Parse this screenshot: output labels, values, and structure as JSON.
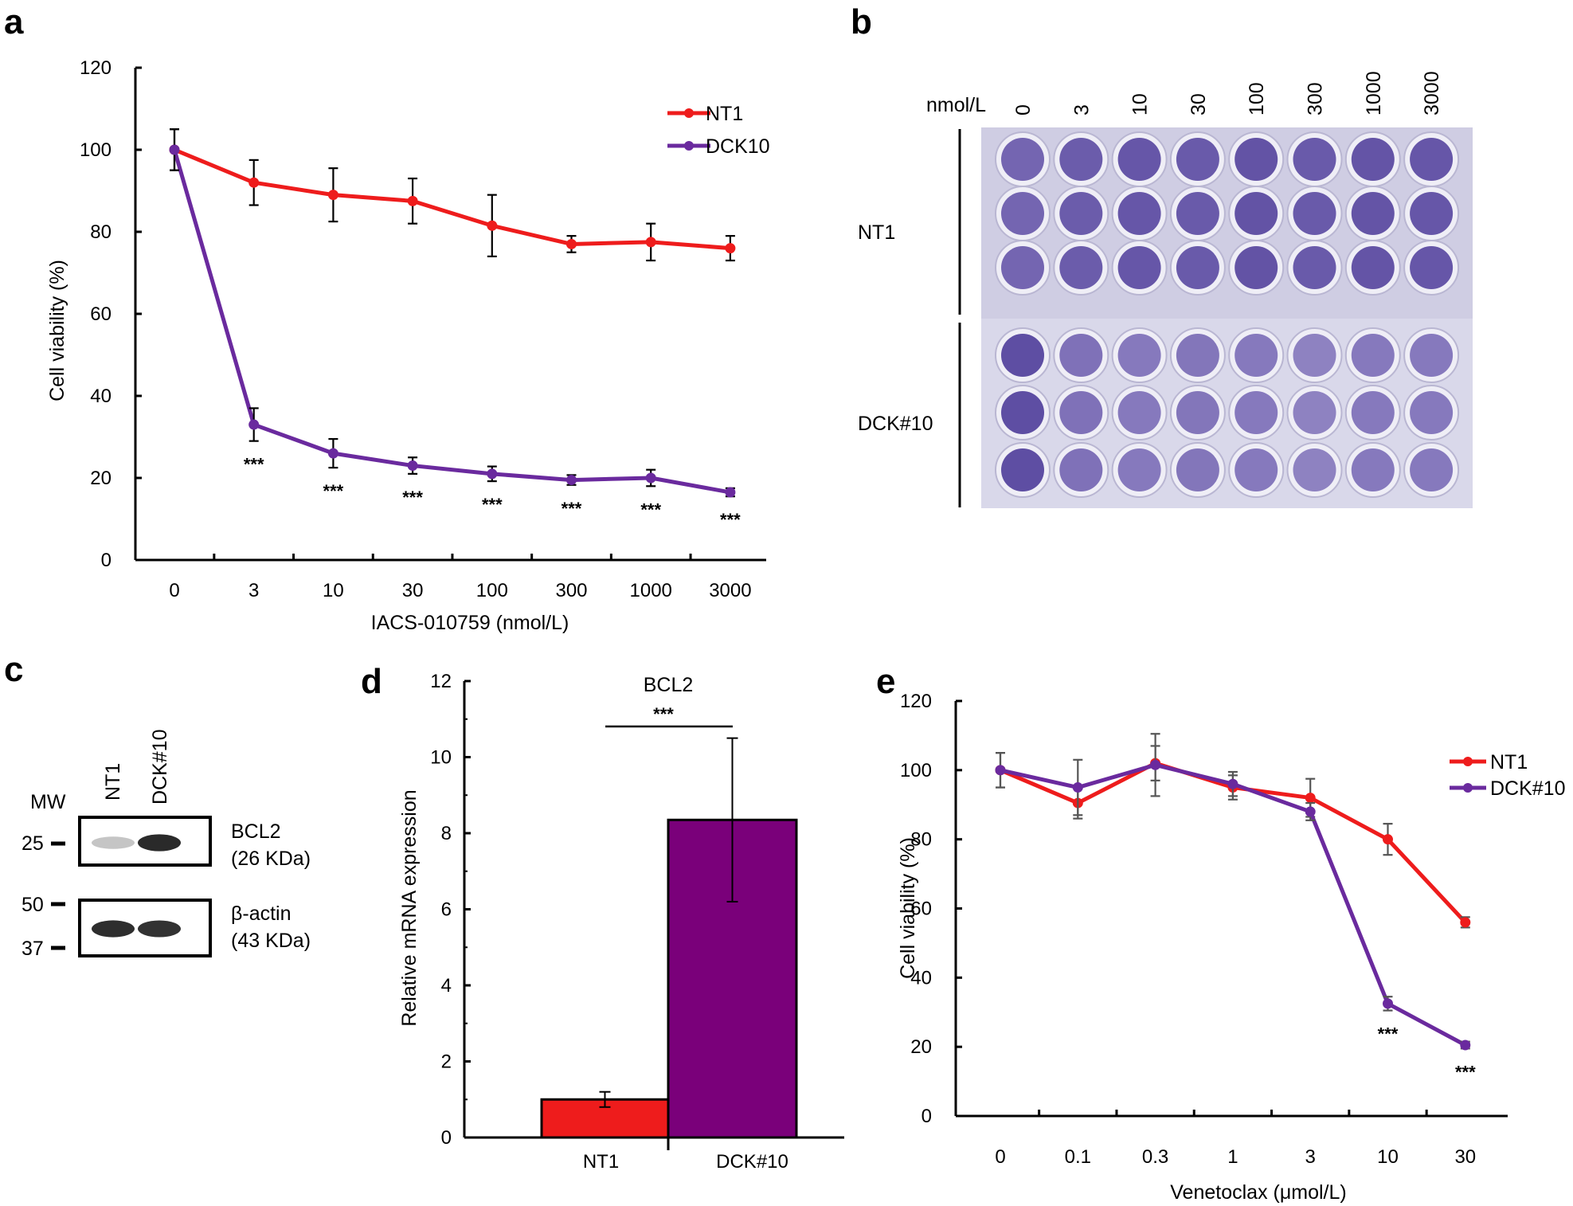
{
  "colors": {
    "nt1": "#ee1c1c",
    "dck": "#6a2a9e",
    "dck_bar": "#7a007a",
    "stain_dark": "#4b3996",
    "stain_light": "#b7aedc",
    "plate": "#cfcde3"
  },
  "panel_a": {
    "letter": "a",
    "chart_data": {
      "type": "line",
      "categories": [
        "0",
        "3",
        "10",
        "30",
        "100",
        "300",
        "1000",
        "3000"
      ],
      "xlabel": "IACS-010759 (nmol/L)",
      "ylabel": "Cell viability (%)",
      "ylim": [
        0,
        120
      ],
      "yticks": [
        0,
        20,
        40,
        60,
        80,
        100,
        120
      ],
      "legend_position": "top-right",
      "series": [
        {
          "name": "NT1",
          "values": [
            100,
            92,
            89,
            87.5,
            81.5,
            77,
            77.5,
            76
          ],
          "errors": [
            5,
            5.5,
            6.5,
            5.5,
            7.5,
            2,
            4.5,
            3
          ]
        },
        {
          "name": "DCK10",
          "values": [
            100,
            33,
            26,
            23,
            21,
            19.5,
            20,
            16.5
          ],
          "errors": [
            5,
            4,
            3.5,
            2,
            1.8,
            1.2,
            2,
            1
          ]
        }
      ],
      "annotations": [
        "",
        "***",
        "***",
        "***",
        "***",
        "***",
        "***",
        "***"
      ]
    }
  },
  "panel_b": {
    "letter": "b",
    "unit_label": "nmol/L",
    "concentrations": [
      "0",
      "3",
      "10",
      "30",
      "100",
      "300",
      "1000",
      "3000"
    ],
    "groups": [
      {
        "label": "NT1",
        "stain": [
          0.62,
          0.7,
          0.75,
          0.72,
          0.78,
          0.72,
          0.77,
          0.75
        ]
      },
      {
        "label": "DCK#10",
        "stain": [
          0.82,
          0.52,
          0.45,
          0.48,
          0.45,
          0.38,
          0.45,
          0.45
        ]
      }
    ]
  },
  "panel_c": {
    "letter": "c",
    "mw_label": "MW",
    "lanes": [
      "NT1",
      "DCK#10"
    ],
    "markers": [
      "25",
      "50",
      "37"
    ],
    "blots": [
      {
        "name": "BCL2",
        "size": "(26 KDa)",
        "intensity": [
          0.18,
          0.92
        ]
      },
      {
        "name": "β-actin",
        "size": "(43 KDa)",
        "intensity": [
          0.9,
          0.88
        ]
      }
    ]
  },
  "panel_d": {
    "letter": "d",
    "chart_data": {
      "type": "bar",
      "title": "BCL2",
      "categories": [
        "NT1",
        "DCK#10"
      ],
      "values": [
        1.0,
        8.35
      ],
      "errors": [
        0.2,
        2.15
      ],
      "ylabel": "Relative mRNA expression",
      "ylim": [
        0,
        12
      ],
      "yticks": [
        0,
        2,
        4,
        6,
        8,
        10,
        12
      ],
      "significance": "***"
    }
  },
  "panel_e": {
    "letter": "e",
    "chart_data": {
      "type": "line",
      "categories": [
        "0",
        "0.1",
        "0.3",
        "1",
        "3",
        "10",
        "30"
      ],
      "xlabel": "Venetoclax (μmol/L)",
      "ylabel": "Cell viability (%)",
      "ylim": [
        0,
        120
      ],
      "yticks": [
        0,
        20,
        40,
        60,
        80,
        100,
        120
      ],
      "legend_position": "top-right",
      "series": [
        {
          "name": "NT1",
          "values": [
            100,
            90.5,
            102,
            95,
            92,
            80,
            56
          ],
          "errors": [
            5,
            4.5,
            5,
            3.5,
            5.5,
            4.5,
            1.5
          ]
        },
        {
          "name": "DCK#10",
          "values": [
            100,
            95,
            101.5,
            96,
            88,
            32.5,
            20.5
          ],
          "errors": [
            5,
            8,
            9,
            3.5,
            2.5,
            2,
            1
          ]
        }
      ],
      "annotations": [
        "",
        "",
        "",
        "",
        "",
        "***",
        "***"
      ]
    }
  }
}
